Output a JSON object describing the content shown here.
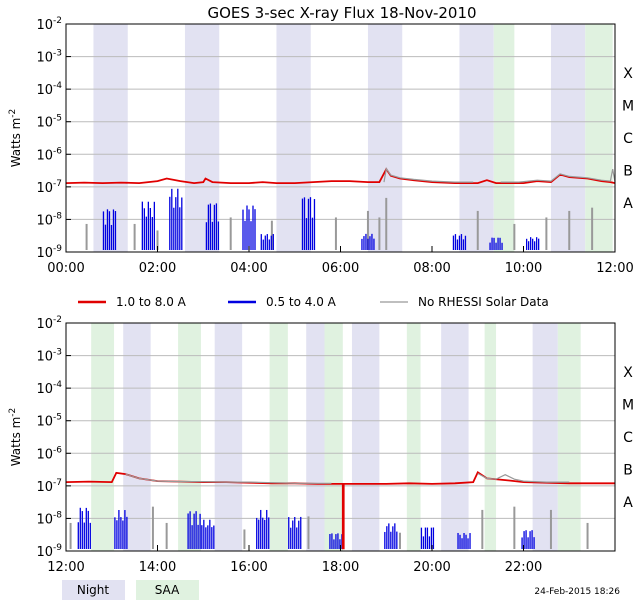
{
  "chart_data": {
    "type": "line",
    "title": "GOES 3-sec X-ray Flux   18-Nov-2010",
    "ylabel": "Watts m",
    "ylabel_exponent": "-2",
    "yscale": "log",
    "ylim": [
      1e-09,
      0.01
    ],
    "yticks": [
      {
        "base": "10",
        "exp": "-9"
      },
      {
        "base": "10",
        "exp": "-8"
      },
      {
        "base": "10",
        "exp": "-7"
      },
      {
        "base": "10",
        "exp": "-6"
      },
      {
        "base": "10",
        "exp": "-5"
      },
      {
        "base": "10",
        "exp": "-4"
      },
      {
        "base": "10",
        "exp": "-3"
      },
      {
        "base": "10",
        "exp": "-2"
      }
    ],
    "flare_classes": [
      {
        "label": "A",
        "flux": 1e-08
      },
      {
        "label": "B",
        "flux": 1e-07
      },
      {
        "label": "C",
        "flux": 1e-06
      },
      {
        "label": "M",
        "flux": 1e-05
      },
      {
        "label": "X",
        "flux": 0.0001
      }
    ],
    "legend": [
      {
        "label": "1.0 to 8.0 A",
        "color": "#e00000"
      },
      {
        "label": "0.5 to 4.0 A",
        "color": "#0000e0"
      },
      {
        "label": "No RHESSI Solar Data",
        "color": "#999999"
      }
    ],
    "band_legend": [
      {
        "label": "Night",
        "color": "#e2e2f2"
      },
      {
        "label": "SAA",
        "color": "#e0f2e0"
      }
    ],
    "footer": "24-Feb-2015 18:26",
    "panels": [
      {
        "name": "top",
        "xlim": [
          0,
          12
        ],
        "xticks": [
          {
            "v": 0,
            "label": "00:00"
          },
          {
            "v": 2,
            "label": "02:00"
          },
          {
            "v": 4,
            "label": "04:00"
          },
          {
            "v": 6,
            "label": "06:00"
          },
          {
            "v": 8,
            "label": "08:00"
          },
          {
            "v": 10,
            "label": "10:00"
          },
          {
            "v": 12,
            "label": "12:00"
          }
        ],
        "night": [
          [
            0.6,
            1.35
          ],
          [
            2.6,
            3.35
          ],
          [
            4.6,
            5.35
          ],
          [
            6.6,
            7.35
          ],
          [
            8.6,
            9.35
          ],
          [
            10.6,
            11.35
          ]
        ],
        "saa": [
          [
            9.35,
            9.8
          ],
          [
            11.35,
            11.95
          ]
        ],
        "series": [
          {
            "name": "1.0 to 8.0 A",
            "color": "#e00000",
            "width": 1.8,
            "points": [
              [
                0,
                1.3e-07
              ],
              [
                0.4,
                1.35e-07
              ],
              [
                0.8,
                1.3e-07
              ],
              [
                1.2,
                1.35e-07
              ],
              [
                1.6,
                1.3e-07
              ],
              [
                2.0,
                1.5e-07
              ],
              [
                2.2,
                1.8e-07
              ],
              [
                2.5,
                1.5e-07
              ],
              [
                2.8,
                1.3e-07
              ],
              [
                3.0,
                1.4e-07
              ],
              [
                3.05,
                1.8e-07
              ],
              [
                3.2,
                1.4e-07
              ],
              [
                3.6,
                1.3e-07
              ],
              [
                4.0,
                1.3e-07
              ],
              [
                4.3,
                1.4e-07
              ],
              [
                4.6,
                1.3e-07
              ],
              [
                5.0,
                1.3e-07
              ],
              [
                5.4,
                1.4e-07
              ],
              [
                5.8,
                1.5e-07
              ],
              [
                6.2,
                1.5e-07
              ],
              [
                6.6,
                1.4e-07
              ],
              [
                6.85,
                1.4e-07
              ],
              [
                7.0,
                3.5e-07
              ],
              [
                7.1,
                2.2e-07
              ],
              [
                7.3,
                1.8e-07
              ],
              [
                7.6,
                1.6e-07
              ],
              [
                8.0,
                1.4e-07
              ],
              [
                8.5,
                1.3e-07
              ],
              [
                8.8,
                1.3e-07
              ],
              [
                9.0,
                1.3e-07
              ],
              [
                9.2,
                1.6e-07
              ],
              [
                9.4,
                1.3e-07
              ],
              [
                9.8,
                1.3e-07
              ],
              [
                10.0,
                1.3e-07
              ],
              [
                10.3,
                1.5e-07
              ],
              [
                10.6,
                1.4e-07
              ],
              [
                10.8,
                2.4e-07
              ],
              [
                11.0,
                2e-07
              ],
              [
                11.4,
                1.8e-07
              ],
              [
                11.7,
                1.5e-07
              ],
              [
                11.9,
                1.4e-07
              ],
              [
                12.0,
                1.3e-07
              ]
            ]
          },
          {
            "name": "No RHESSI Solar Data",
            "color": "#999999",
            "width": 1.2,
            "points": [
              [
                6.95,
                1.4e-07
              ],
              [
                7.0,
                3.6e-07
              ],
              [
                7.1,
                2.3e-07
              ],
              [
                7.3,
                1.9e-07
              ],
              [
                7.6,
                1.7e-07
              ],
              [
                8.0,
                1.5e-07
              ],
              [
                8.5,
                1.4e-07
              ],
              [
                8.9,
                1.4e-07
              ]
            ]
          },
          {
            "name": "No RHESSI Solar Data",
            "color": "#999999",
            "width": 1.2,
            "points": [
              [
                9.5,
                1.4e-07
              ],
              [
                9.9,
                1.4e-07
              ],
              [
                10.3,
                1.6e-07
              ],
              [
                10.6,
                1.5e-07
              ],
              [
                10.8,
                2.5e-07
              ],
              [
                11.0,
                2.1e-07
              ],
              [
                11.4,
                1.9e-07
              ],
              [
                11.7,
                1.6e-07
              ],
              [
                11.9,
                1.5e-07
              ],
              [
                11.95,
                3.5e-07
              ],
              [
                12.0,
                1.4e-07
              ]
            ]
          }
        ],
        "spikes_blue": [
          [
            0.95,
            1.3
          ],
          [
            1.8,
            1.5
          ],
          [
            2.4,
            1.9
          ],
          [
            3.2,
            1.5
          ],
          [
            4.0,
            1.4
          ],
          [
            4.4,
            0.5
          ],
          [
            5.3,
            1.7
          ],
          [
            6.6,
            0.5
          ],
          [
            8.6,
            0.5
          ],
          [
            9.4,
            0.4
          ],
          [
            10.2,
            0.4
          ]
        ],
        "spikes_gray": [
          [
            0.45,
            0.8
          ],
          [
            1.5,
            0.8
          ],
          [
            2.0,
            0.6
          ],
          [
            3.6,
            1.0
          ],
          [
            4.5,
            0.9
          ],
          [
            5.9,
            1.0
          ],
          [
            6.6,
            1.2
          ],
          [
            6.85,
            1.0
          ],
          [
            7.0,
            1.6
          ],
          [
            9.0,
            1.2
          ],
          [
            9.8,
            0.8
          ],
          [
            10.5,
            1.0
          ],
          [
            11.0,
            1.2
          ],
          [
            11.5,
            1.3
          ]
        ]
      },
      {
        "name": "bottom",
        "xlim": [
          12,
          24
        ],
        "xticks": [
          {
            "v": 12,
            "label": "12:00"
          },
          {
            "v": 14,
            "label": "14:00"
          },
          {
            "v": 16,
            "label": "16:00"
          },
          {
            "v": 18,
            "label": "18:00"
          },
          {
            "v": 20,
            "label": "20:00"
          },
          {
            "v": 22,
            "label": "22:00"
          }
        ],
        "night": [
          [
            13.25,
            13.85
          ],
          [
            15.25,
            15.85
          ],
          [
            17.25,
            17.85
          ],
          [
            18.25,
            18.85
          ],
          [
            20.2,
            20.8
          ],
          [
            22.2,
            22.75
          ]
        ],
        "saa": [
          [
            12.55,
            13.05
          ],
          [
            14.45,
            14.95
          ],
          [
            16.45,
            16.85
          ],
          [
            17.65,
            18.05
          ],
          [
            19.45,
            19.75
          ],
          [
            21.15,
            21.4
          ],
          [
            22.75,
            23.25
          ]
        ],
        "series": [
          {
            "name": "1.0 to 8.0 A",
            "color": "#e00000",
            "width": 1.8,
            "points": [
              [
                12,
                1.3e-07
              ],
              [
                12.5,
                1.35e-07
              ],
              [
                13.0,
                1.3e-07
              ],
              [
                13.1,
                2.5e-07
              ],
              [
                13.3,
                2.3e-07
              ],
              [
                13.6,
                1.7e-07
              ],
              [
                14.0,
                1.4e-07
              ],
              [
                14.5,
                1.35e-07
              ],
              [
                15.0,
                1.3e-07
              ],
              [
                15.5,
                1.3e-07
              ],
              [
                16.0,
                1.25e-07
              ],
              [
                16.5,
                1.2e-07
              ],
              [
                17.0,
                1.2e-07
              ],
              [
                17.5,
                1.15e-07
              ],
              [
                17.9,
                1.15e-07
              ],
              [
                18.05,
                1.15e-07
              ],
              [
                18.05,
                1.2e-09
              ],
              [
                18.07,
                1.2e-09
              ],
              [
                18.07,
                1.15e-07
              ],
              [
                18.5,
                1.15e-07
              ],
              [
                19.0,
                1.15e-07
              ],
              [
                19.5,
                1.2e-07
              ],
              [
                20.0,
                1.15e-07
              ],
              [
                20.5,
                1.2e-07
              ],
              [
                20.9,
                1.3e-07
              ],
              [
                21.0,
                2.6e-07
              ],
              [
                21.2,
                1.7e-07
              ],
              [
                21.6,
                1.5e-07
              ],
              [
                22.0,
                1.3e-07
              ],
              [
                22.5,
                1.25e-07
              ],
              [
                23.0,
                1.2e-07
              ],
              [
                23.5,
                1.2e-07
              ],
              [
                24.0,
                1.2e-07
              ]
            ]
          },
          {
            "name": "No RHESSI Solar Data",
            "color": "#999999",
            "width": 1.2,
            "points": [
              [
                13.3,
                2.3e-07
              ],
              [
                13.6,
                1.7e-07
              ],
              [
                14.0,
                1.4e-07
              ],
              [
                14.5,
                1.35e-07
              ],
              [
                15.0,
                1.35e-07
              ],
              [
                15.5,
                1.3e-07
              ],
              [
                16.0,
                1.3e-07
              ],
              [
                16.5,
                1.25e-07
              ],
              [
                17.0,
                1.2e-07
              ],
              [
                17.5,
                1.2e-07
              ],
              [
                17.8,
                1.2e-07
              ]
            ]
          },
          {
            "name": "No RHESSI Solar Data",
            "color": "#999999",
            "width": 1.2,
            "points": [
              [
                21.0,
                2.4e-07
              ],
              [
                21.2,
                1.7e-07
              ],
              [
                21.4,
                1.6e-07
              ],
              [
                21.6,
                2.2e-07
              ],
              [
                21.8,
                1.6e-07
              ],
              [
                22.0,
                1.4e-07
              ],
              [
                22.5,
                1.3e-07
              ],
              [
                23.0,
                1.3e-07
              ]
            ]
          }
        ],
        "spikes_blue": [
          [
            12.4,
            1.3
          ],
          [
            13.2,
            1.2
          ],
          [
            14.8,
            1.2
          ],
          [
            15.1,
            0.9
          ],
          [
            16.3,
            1.2
          ],
          [
            17.0,
            1.0
          ],
          [
            17.9,
            0.5
          ],
          [
            19.1,
            0.8
          ],
          [
            19.9,
            0.7
          ],
          [
            20.7,
            0.5
          ],
          [
            22.1,
            0.6
          ]
        ],
        "spikes_gray": [
          [
            12.1,
            0.8
          ],
          [
            13.9,
            1.3
          ],
          [
            14.2,
            0.8
          ],
          [
            15.9,
            0.6
          ],
          [
            17.3,
            1.0
          ],
          [
            19.3,
            0.5
          ],
          [
            21.1,
            1.2
          ],
          [
            21.8,
            1.3
          ],
          [
            22.6,
            1.2
          ],
          [
            23.4,
            0.8
          ]
        ]
      }
    ]
  }
}
